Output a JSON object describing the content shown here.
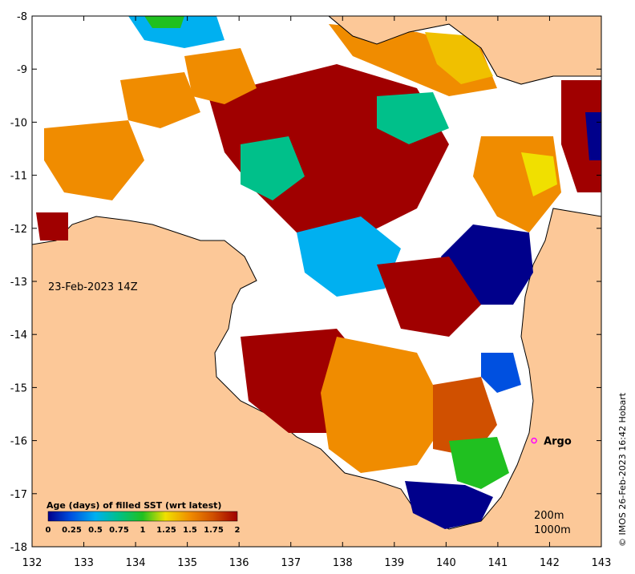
{
  "map": {
    "date_label": "23-Feb-2023 14Z",
    "credit": "© IMOS 26-Feb-2023 16:42 Hobart",
    "x_ticks": [
      "132",
      "133",
      "134",
      "135",
      "136",
      "137",
      "138",
      "139",
      "140",
      "141",
      "142",
      "143"
    ],
    "y_ticks": [
      "-8",
      "-9",
      "-10",
      "-11",
      "-12",
      "-13",
      "-14",
      "-15",
      "-16",
      "-17",
      "-18"
    ],
    "xlim": [
      132,
      143
    ],
    "ylim": [
      -18,
      -8
    ],
    "argo": {
      "label": "Argo",
      "lon": 141.7,
      "lat": -16.0,
      "color": "#ff00ff"
    },
    "depth_contours": [
      "200m",
      "1000m"
    ],
    "land_color": "#fcc898",
    "no_data_color": "#ffffff"
  },
  "legend": {
    "title": "Age (days) of filled SST (wrt latest)",
    "ticks": [
      "0",
      "0.25",
      "0.5",
      "0.75",
      "1",
      "1.25",
      "1.5",
      "1.75",
      "2"
    ],
    "colors": [
      "#00008b",
      "#0050e0",
      "#00b0f0",
      "#00c08a",
      "#20c020",
      "#f0e000",
      "#f08c00",
      "#d05000",
      "#a00000"
    ]
  }
}
